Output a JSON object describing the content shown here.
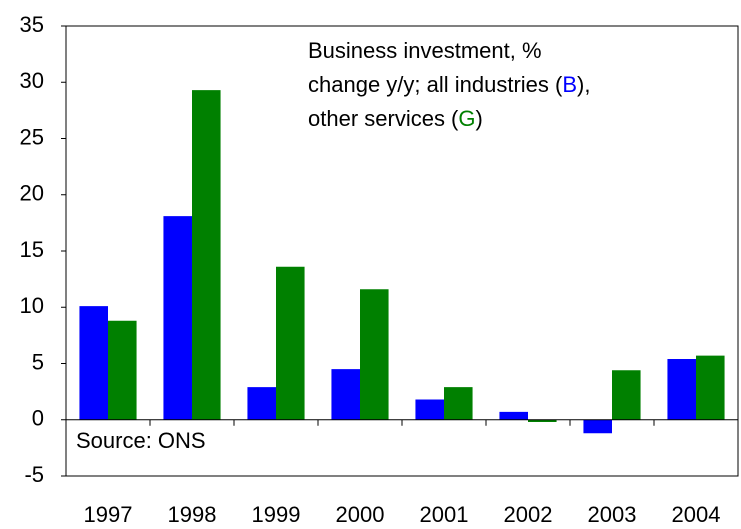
{
  "chart_data": {
    "type": "bar",
    "annotation_lines": [
      [
        "Business investment, %"
      ],
      [
        "change y/y; all industries (",
        "B",
        "),"
      ],
      [
        "other services (",
        "G",
        ")"
      ]
    ],
    "source": "Source: ONS",
    "categories": [
      "1997",
      "1998",
      "1999",
      "2000",
      "2001",
      "2002",
      "2003",
      "2004"
    ],
    "series": [
      {
        "name": "B",
        "color": "#0000ff",
        "values": [
          10.1,
          18.1,
          2.9,
          4.5,
          1.8,
          0.7,
          -1.2,
          5.4
        ]
      },
      {
        "name": "G",
        "color": "#008000",
        "values": [
          8.8,
          29.3,
          13.6,
          11.6,
          2.9,
          -0.2,
          4.4,
          5.7
        ]
      }
    ],
    "ylim": [
      -5,
      35
    ],
    "yticks": [
      -5,
      0,
      5,
      10,
      15,
      20,
      25,
      30,
      35
    ],
    "grid": false
  }
}
